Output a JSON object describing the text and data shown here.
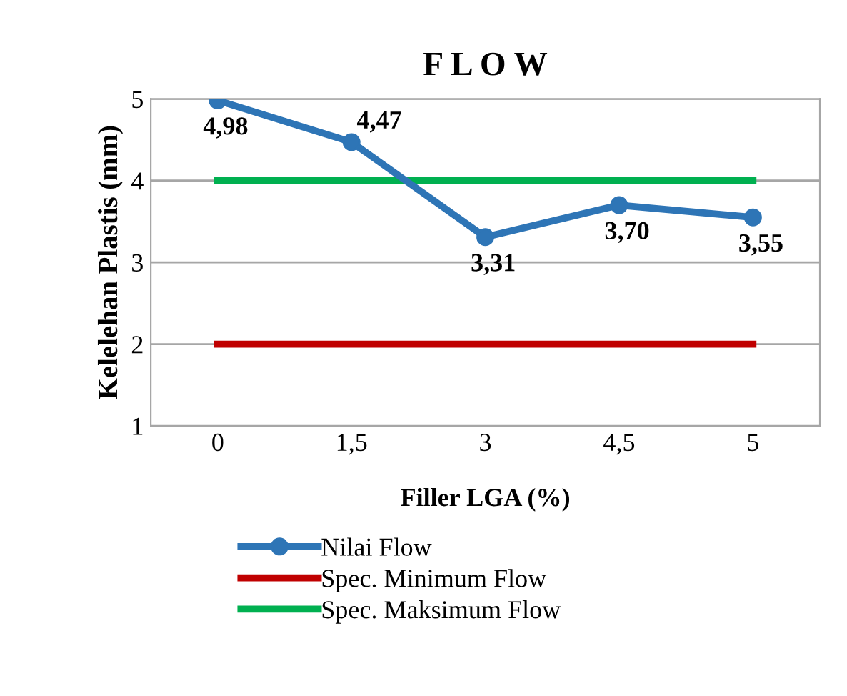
{
  "chart_data": {
    "type": "line",
    "title": "F L O W",
    "xlabel": "Filler LGA (%)",
    "ylabel": "Kelelehan Plastis (mm)",
    "categories": [
      "0",
      "1,5",
      "3",
      "4,5",
      "5"
    ],
    "series": [
      {
        "name": "Nilai Flow",
        "color": "#2e75b6",
        "values": [
          4.98,
          4.47,
          3.31,
          3.7,
          3.55
        ],
        "marker": "circle",
        "value_labels": [
          "4,98",
          "4,47",
          "3,31",
          "3,70",
          "3,55"
        ]
      },
      {
        "name": "Spec. Minimum Flow",
        "color": "#c00000",
        "values": [
          2,
          2,
          2,
          2,
          2
        ],
        "marker": "none"
      },
      {
        "name": "Spec. Maksimum Flow",
        "color": "#00b050",
        "values": [
          4,
          4,
          4,
          4,
          4
        ],
        "marker": "none"
      }
    ],
    "ylim": [
      1,
      5
    ],
    "yticks": [
      1,
      2,
      3,
      4,
      5
    ],
    "grid": "y",
    "legend": "bottom"
  }
}
